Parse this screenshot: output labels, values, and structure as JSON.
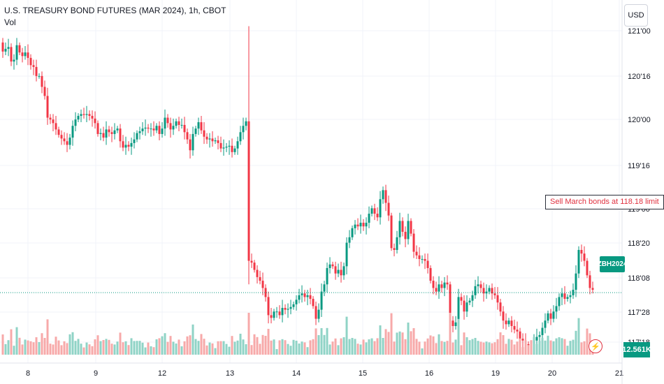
{
  "header": {
    "title": "U.S. TREASURY BOND FUTURES (MAR 2024), 1h, CBOT",
    "volume_label": "Vol"
  },
  "currency_button": "USD",
  "order_note": "Sell March bonds at 118.18 limit",
  "price_badge": "ZBH2024",
  "volume_badge": "12.561K",
  "colors": {
    "up": "#089981",
    "down": "#f23645",
    "up_volume": "#8fd3c6",
    "down_volume": "#f7a9a9",
    "grid": "#f0f3fa",
    "price_line": "#089981"
  },
  "chart_data": {
    "type": "candlestick",
    "title": "U.S. TREASURY BOND FUTURES (MAR 2024), 1h, CBOT",
    "y_axis": {
      "side": "right",
      "ticks": [
        "117'18",
        "117'28",
        "118'08",
        "118'20",
        "119'00",
        "119'16",
        "120'00",
        "120'16",
        "121'00"
      ]
    },
    "x_axis": {
      "ticks": [
        "8",
        "9",
        "12",
        "13",
        "14",
        "15",
        "16",
        "19",
        "20",
        "21"
      ]
    },
    "current_price": "118.14",
    "order_level": "118.18",
    "grid": true,
    "series": [
      {
        "name": "ZBH2024",
        "close_points": [
          [
            0,
            120.87
          ],
          [
            4,
            120.77
          ],
          [
            8,
            120.8
          ],
          [
            12,
            120.82
          ],
          [
            16,
            120.66
          ],
          [
            20,
            120.68
          ],
          [
            24,
            120.84
          ],
          [
            28,
            120.76
          ],
          [
            32,
            120.72
          ],
          [
            36,
            120.76
          ],
          [
            40,
            120.7
          ],
          [
            44,
            120.62
          ],
          [
            48,
            120.6
          ],
          [
            52,
            120.5
          ],
          [
            56,
            120.5
          ],
          [
            60,
            120.38
          ],
          [
            64,
            120.28
          ],
          [
            68,
            120.04
          ],
          [
            72,
            120.02
          ],
          [
            76,
            119.98
          ],
          [
            80,
            119.91
          ],
          [
            84,
            119.85
          ],
          [
            88,
            119.81
          ],
          [
            92,
            119.78
          ],
          [
            96,
            119.74
          ],
          [
            100,
            119.82
          ],
          [
            104,
            119.95
          ],
          [
            108,
            120.02
          ],
          [
            112,
            120.06
          ],
          [
            116,
            120.08
          ],
          [
            120,
            120.07
          ],
          [
            124,
            120.08
          ],
          [
            128,
            120.06
          ],
          [
            132,
            120.03
          ],
          [
            136,
            119.98
          ],
          [
            140,
            119.86
          ],
          [
            144,
            119.87
          ],
          [
            148,
            119.82
          ],
          [
            152,
            119.91
          ],
          [
            156,
            119.88
          ],
          [
            160,
            119.86
          ],
          [
            164,
            119.9
          ],
          [
            168,
            119.92
          ],
          [
            172,
            119.78
          ],
          [
            176,
            119.71
          ],
          [
            180,
            119.74
          ],
          [
            184,
            119.72
          ],
          [
            188,
            119.76
          ],
          [
            192,
            119.8
          ],
          [
            196,
            119.87
          ],
          [
            200,
            119.89
          ],
          [
            204,
            119.92
          ],
          [
            208,
            119.93
          ],
          [
            212,
            119.92
          ],
          [
            216,
            119.92
          ],
          [
            220,
            119.9
          ],
          [
            224,
            119.95
          ],
          [
            228,
            119.86
          ],
          [
            232,
            119.92
          ],
          [
            236,
            120.04
          ],
          [
            240,
            119.98
          ],
          [
            244,
            119.91
          ],
          [
            248,
            119.95
          ],
          [
            252,
            120.0
          ],
          [
            256,
            119.96
          ],
          [
            260,
            119.96
          ],
          [
            264,
            119.88
          ],
          [
            268,
            119.8
          ],
          [
            272,
            119.68
          ],
          [
            276,
            119.86
          ],
          [
            280,
            119.92
          ],
          [
            284,
            119.99
          ],
          [
            288,
            119.9
          ],
          [
            292,
            119.83
          ],
          [
            296,
            119.8
          ],
          [
            300,
            119.81
          ],
          [
            304,
            119.78
          ],
          [
            308,
            119.79
          ],
          [
            312,
            119.76
          ],
          [
            316,
            119.7
          ],
          [
            320,
            119.71
          ],
          [
            324,
            119.72
          ],
          [
            328,
            119.73
          ],
          [
            332,
            119.66
          ],
          [
            336,
            119.7
          ],
          [
            340,
            119.78
          ],
          [
            344,
            119.88
          ],
          [
            348,
            119.95
          ],
          [
            352,
            120.0
          ],
          [
            356,
            118.46
          ],
          [
            360,
            118.44
          ],
          [
            364,
            118.36
          ],
          [
            368,
            118.28
          ],
          [
            372,
            118.24
          ],
          [
            376,
            118.16
          ],
          [
            380,
            118.06
          ],
          [
            384,
            117.86
          ],
          [
            388,
            117.83
          ],
          [
            392,
            117.9
          ],
          [
            396,
            117.9
          ],
          [
            400,
            117.86
          ],
          [
            404,
            117.94
          ],
          [
            408,
            117.92
          ],
          [
            412,
            117.93
          ],
          [
            416,
            117.95
          ],
          [
            420,
            117.98
          ],
          [
            424,
            118.03
          ],
          [
            428,
            118.08
          ],
          [
            432,
            118.1
          ],
          [
            436,
            118.06
          ],
          [
            440,
            118.08
          ],
          [
            444,
            118.04
          ],
          [
            448,
            117.96
          ],
          [
            452,
            117.82
          ],
          [
            456,
            117.92
          ],
          [
            460,
            118.12
          ],
          [
            464,
            118.2
          ],
          [
            468,
            118.38
          ],
          [
            472,
            118.42
          ],
          [
            476,
            118.4
          ],
          [
            480,
            118.32
          ],
          [
            484,
            118.36
          ],
          [
            488,
            118.3
          ],
          [
            492,
            118.4
          ],
          [
            496,
            118.66
          ],
          [
            500,
            118.72
          ],
          [
            504,
            118.82
          ],
          [
            508,
            118.86
          ],
          [
            512,
            118.84
          ],
          [
            516,
            118.88
          ],
          [
            520,
            118.84
          ],
          [
            524,
            118.88
          ],
          [
            528,
            118.98
          ],
          [
            532,
            119.04
          ],
          [
            536,
            118.98
          ],
          [
            540,
            118.94
          ],
          [
            544,
            119.14
          ],
          [
            548,
            119.24
          ],
          [
            552,
            119.1
          ],
          [
            556,
            118.96
          ],
          [
            560,
            118.6
          ],
          [
            564,
            118.58
          ],
          [
            568,
            118.72
          ],
          [
            572,
            118.9
          ],
          [
            576,
            118.78
          ],
          [
            580,
            118.7
          ],
          [
            584,
            118.9
          ],
          [
            588,
            118.76
          ],
          [
            592,
            118.56
          ],
          [
            596,
            118.52
          ],
          [
            600,
            118.48
          ],
          [
            604,
            118.48
          ],
          [
            608,
            118.46
          ],
          [
            612,
            118.38
          ],
          [
            616,
            118.24
          ],
          [
            620,
            118.16
          ],
          [
            624,
            118.12
          ],
          [
            628,
            118.2
          ],
          [
            632,
            118.16
          ],
          [
            636,
            118.22
          ],
          [
            640,
            118.2
          ],
          [
            644,
            117.8
          ],
          [
            648,
            117.74
          ],
          [
            652,
            117.78
          ],
          [
            656,
            118.06
          ],
          [
            660,
            118.02
          ],
          [
            664,
            117.9
          ],
          [
            668,
            118.0
          ],
          [
            672,
            118.02
          ],
          [
            676,
            118.08
          ],
          [
            680,
            118.18
          ],
          [
            684,
            118.2
          ],
          [
            688,
            118.16
          ],
          [
            692,
            118.1
          ],
          [
            696,
            118.12
          ],
          [
            700,
            118.16
          ],
          [
            704,
            118.1
          ],
          [
            708,
            118.08
          ],
          [
            712,
            118.0
          ],
          [
            716,
            117.9
          ],
          [
            720,
            117.8
          ],
          [
            724,
            117.76
          ],
          [
            728,
            117.8
          ],
          [
            732,
            117.74
          ],
          [
            736,
            117.7
          ],
          [
            740,
            117.68
          ],
          [
            744,
            117.6
          ],
          [
            748,
            117.58
          ],
          [
            752,
            117.54
          ],
          [
            756,
            117.52
          ],
          [
            760,
            117.5
          ],
          [
            764,
            117.58
          ],
          [
            768,
            117.62
          ],
          [
            772,
            117.64
          ],
          [
            776,
            117.72
          ],
          [
            780,
            117.8
          ],
          [
            784,
            117.88
          ],
          [
            788,
            117.82
          ],
          [
            792,
            117.9
          ],
          [
            796,
            117.96
          ],
          [
            800,
            118.06
          ],
          [
            804,
            118.1
          ],
          [
            808,
            118.04
          ],
          [
            812,
            118.06
          ],
          [
            816,
            118.08
          ],
          [
            820,
            118.14
          ],
          [
            824,
            118.32
          ],
          [
            828,
            118.58
          ],
          [
            832,
            118.54
          ],
          [
            836,
            118.46
          ],
          [
            840,
            118.3
          ],
          [
            844,
            118.16
          ],
          [
            848,
            118.14
          ]
        ]
      }
    ]
  }
}
